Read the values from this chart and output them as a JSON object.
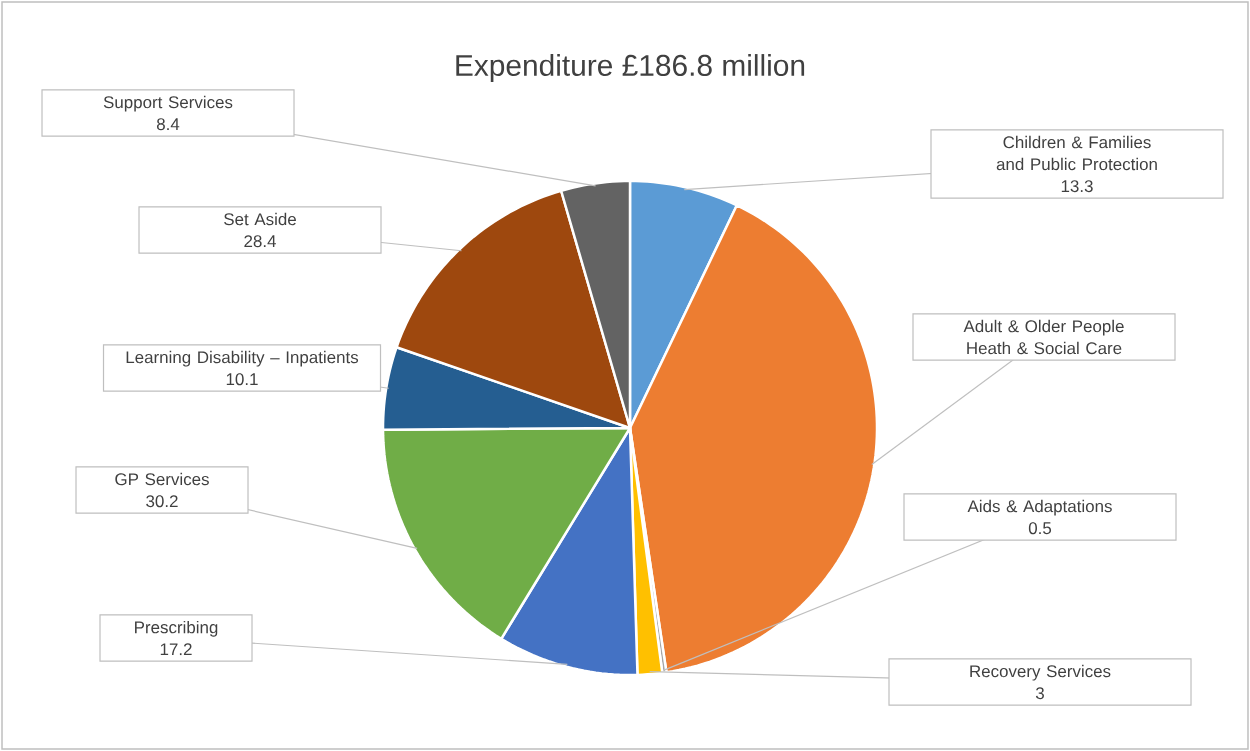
{
  "chart_data": {
    "type": "pie",
    "title": "Expenditure £186.8 million",
    "categories": [
      "Children & Families and Public Protection",
      "Adult & Older People Heath & Social Care",
      "Aids & Adaptations",
      "Recovery Services",
      "Prescribing",
      "GP Services",
      "Learning Disability – Inpatients",
      "Set Aside",
      "Support Services"
    ],
    "values": [
      13.3,
      75.7,
      0.5,
      3,
      17.2,
      30.2,
      10.1,
      28.4,
      8.4
    ],
    "value_labels": [
      "13.3",
      null,
      "0.5",
      "3",
      "17.2",
      "30.2",
      "10.1",
      "28.4",
      "8.4"
    ],
    "colors": [
      "#5b9bd5",
      "#ed7d31",
      "#a5a5a5",
      "#ffc000",
      "#4472c4",
      "#70ad47",
      "#255e91",
      "#9e480e",
      "#636363"
    ]
  }
}
